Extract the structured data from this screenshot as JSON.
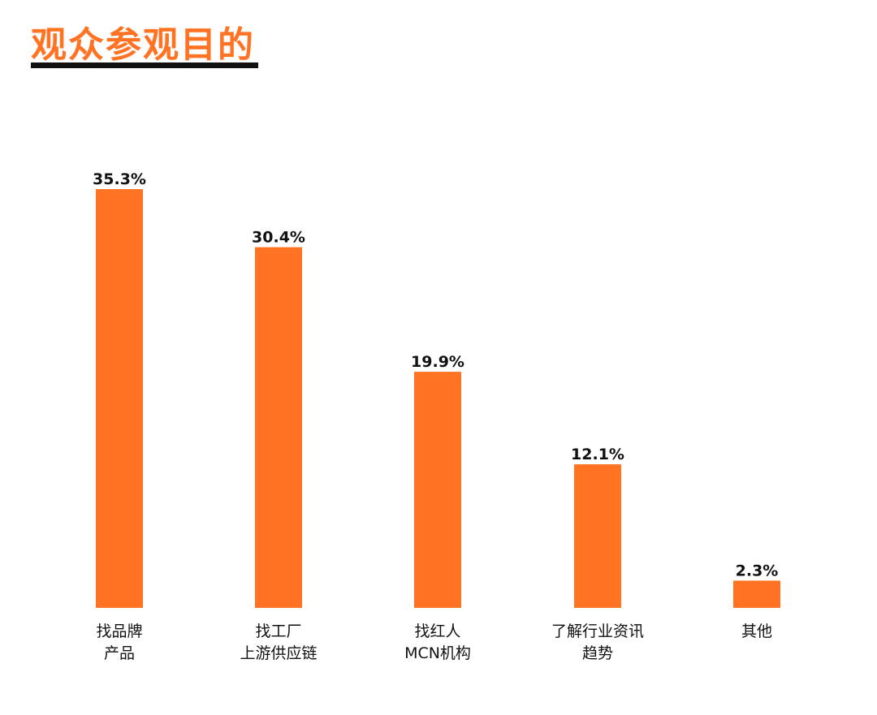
{
  "title": "观众参观目的",
  "colors": {
    "accent": "#ff7323",
    "bar": "#ff7323",
    "text": "#111111",
    "underline": "#111111"
  },
  "chart_data": {
    "type": "bar",
    "categories": [
      [
        "找品牌",
        "产品"
      ],
      [
        "找工厂",
        "上游供应链"
      ],
      [
        "找红人",
        "MCN机构"
      ],
      [
        "了解行业资讯",
        "趋势"
      ],
      [
        "其他"
      ]
    ],
    "values": [
      35.3,
      30.4,
      19.9,
      12.1,
      2.3
    ],
    "value_labels": [
      "35.3%",
      "30.4%",
      "19.9%",
      "12.1%",
      "2.3%"
    ],
    "ylim": [
      0,
      35.3
    ],
    "grid": false,
    "legend": "none"
  }
}
